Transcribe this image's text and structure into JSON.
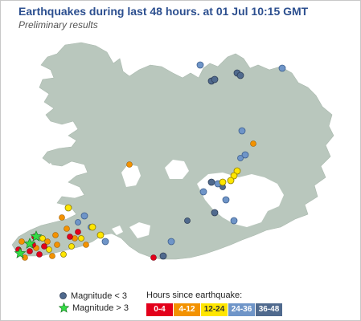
{
  "header": {
    "title": "Earthquakes during last 48 hours.  at 01 Jul 10:15 GMT",
    "subtitle": "Preliminary results"
  },
  "legend": {
    "magnitude_small": "Magnitude < 3",
    "magnitude_large": "Magnitude > 3",
    "hours_title": "Hours since earthquake:",
    "hours": [
      {
        "label": "0-4",
        "color": "#e3001b",
        "text_color": "#ffffff"
      },
      {
        "label": "4-12",
        "color": "#f39200",
        "text_color": "#ffffff"
      },
      {
        "label": "12-24",
        "color": "#ffe600",
        "text_color": "#333333"
      },
      {
        "label": "24-36",
        "color": "#6f95c8",
        "text_color": "#ffffff"
      },
      {
        "label": "36-48",
        "color": "#506a8e",
        "text_color": "#ffffff"
      }
    ]
  },
  "colors": {
    "land": "#b9c7bd",
    "glacier": "#ffffff",
    "title": "#2c4f8f",
    "star": "#33dd44"
  }
}
